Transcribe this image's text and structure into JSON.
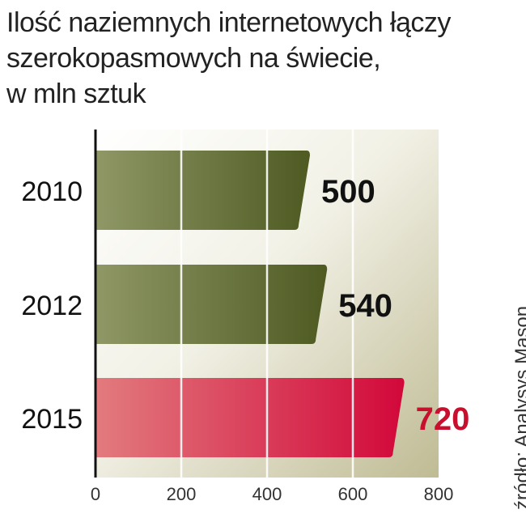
{
  "title_lines": [
    "Ilość naziemnych internetowych łączy",
    "szerokopasmowych na świecie,",
    "w mln sztuk"
  ],
  "source": "źródło: Analysys Mason",
  "colors": {
    "bar_green": "#5c6a2c",
    "bar_red": "#d8143c",
    "label_dark": "#111111",
    "label_red": "#c8102e",
    "plot_bg": "#c9c5a3"
  },
  "chart_data": {
    "type": "bar",
    "orientation": "horizontal",
    "categories": [
      "2010",
      "2012",
      "2015"
    ],
    "values": [
      500,
      540,
      720
    ],
    "value_labels": [
      "500",
      "540",
      "720"
    ],
    "highlight_index": 2,
    "xlim": [
      0,
      800
    ],
    "xticks": [
      "0",
      "200",
      "400",
      "600",
      "800"
    ],
    "grid": true
  }
}
